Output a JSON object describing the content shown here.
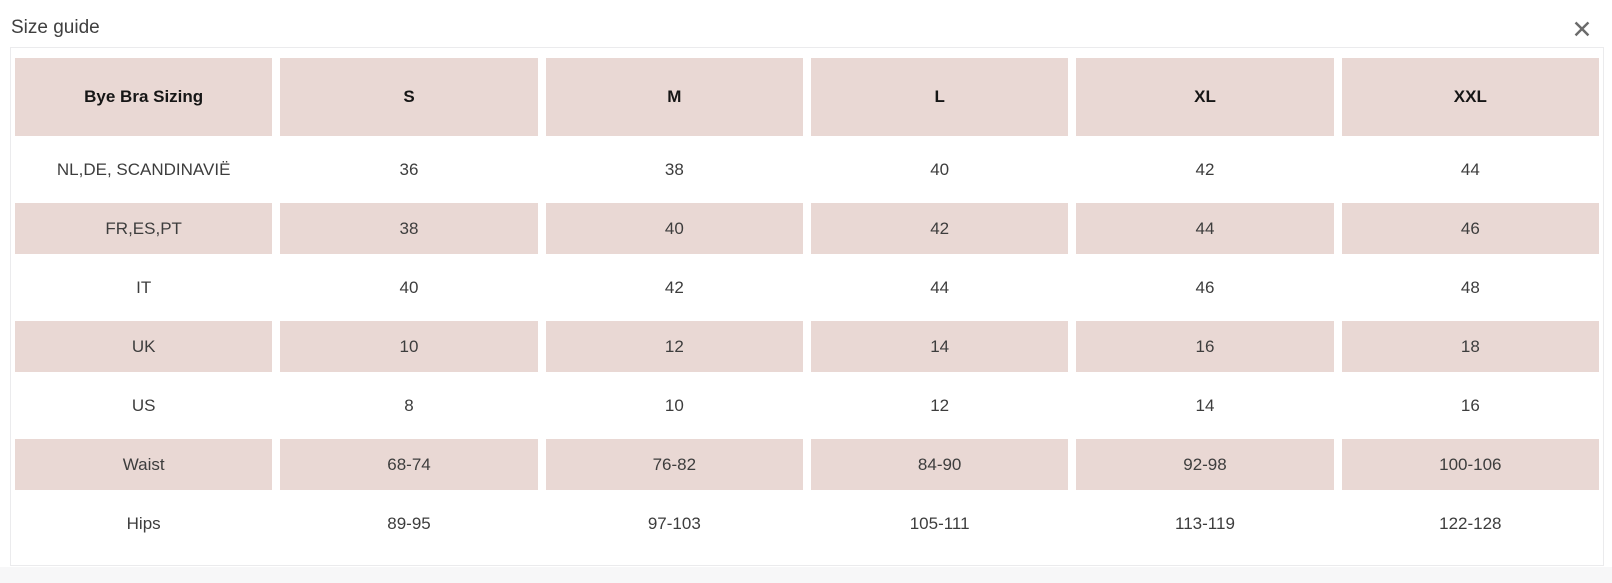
{
  "modal": {
    "title": "Size guide",
    "close_glyph": "✕"
  },
  "colors": {
    "accent_pink": "#e9d8d4",
    "panel_border": "#ebebed",
    "header_text": "#161616",
    "body_text": "#3d3d3d",
    "title_text": "#3f3f3f",
    "close_icon": "#6b6b6b",
    "page_background": "#f7f7f8"
  },
  "table": {
    "columns": [
      "Bye Bra Sizing",
      "S",
      "M",
      "L",
      "XL",
      "XXL"
    ],
    "rows": [
      {
        "label": "NL,DE, SCANDINAVIË",
        "values": [
          "36",
          "38",
          "40",
          "42",
          "44"
        ]
      },
      {
        "label": "FR,ES,PT",
        "values": [
          "38",
          "40",
          "42",
          "44",
          "46"
        ]
      },
      {
        "label": "IT",
        "values": [
          "40",
          "42",
          "44",
          "46",
          "48"
        ]
      },
      {
        "label": "UK",
        "values": [
          "10",
          "12",
          "14",
          "16",
          "18"
        ]
      },
      {
        "label": "US",
        "values": [
          "8",
          "10",
          "12",
          "14",
          "16"
        ]
      },
      {
        "label": "Waist",
        "values": [
          "68-74",
          "76-82",
          "84-90",
          "92-98",
          "100-106"
        ]
      },
      {
        "label": "Hips",
        "values": [
          "89-95",
          "97-103",
          "105-111",
          "113-119",
          "122-128"
        ]
      }
    ]
  }
}
